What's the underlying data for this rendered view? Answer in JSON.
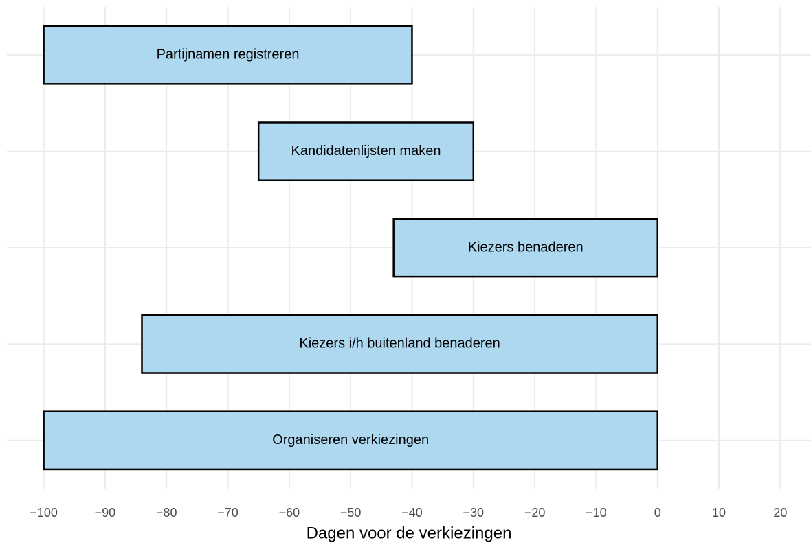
{
  "chart_data": {
    "type": "range-bar",
    "categories": [
      "Partijnamen registreren",
      "Kandidatenlijsten maken",
      "Kiezers benaderen",
      "Kiezers i/h buitenland benaderen",
      "Organiseren verkiezingen"
    ],
    "start": [
      -100,
      -65,
      -43,
      -84,
      -100
    ],
    "end": [
      -40,
      -30,
      0,
      0,
      0
    ],
    "color": "#add8f0",
    "xlabel": "Dagen voor de verkiezingen",
    "xlim": [
      -106,
      25
    ],
    "xticks": [
      {
        "value": -100,
        "label": "−100"
      },
      {
        "value": -90,
        "label": "−90"
      },
      {
        "value": -80,
        "label": "−80"
      },
      {
        "value": -70,
        "label": "−70"
      },
      {
        "value": -60,
        "label": "−60"
      },
      {
        "value": -50,
        "label": "−50"
      },
      {
        "value": -40,
        "label": "−40"
      },
      {
        "value": -30,
        "label": "−30"
      },
      {
        "value": -20,
        "label": "−20"
      },
      {
        "value": -10,
        "label": "−10"
      },
      0,
      10,
      20
    ],
    "grid": true
  }
}
